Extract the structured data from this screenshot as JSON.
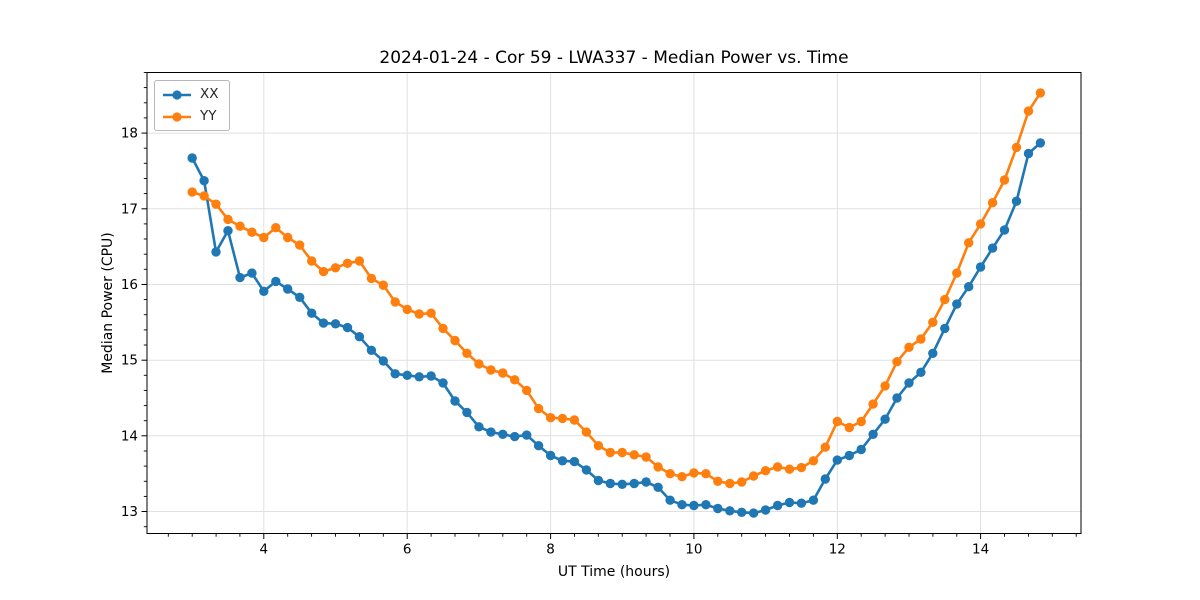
{
  "figure": {
    "title": "2024-01-24 - Cor 59 - LWA337 - Median Power vs. Time",
    "xlabel": "UT Time (hours)",
    "ylabel": "Median Power (CPU)"
  },
  "legend": {
    "items": [
      {
        "label": "XX",
        "color": "#1f77b4"
      },
      {
        "label": "YY",
        "color": "#ff7f0e"
      }
    ]
  },
  "chart_data": {
    "type": "line",
    "title": "2024-01-24 - Cor 59 - LWA337 - Median Power vs. Time",
    "xlabel": "UT Time (hours)",
    "ylabel": "Median Power (CPU)",
    "xlim": [
      2.37,
      15.4
    ],
    "ylim": [
      12.71,
      18.8
    ],
    "x_ticks": [
      4,
      6,
      8,
      10,
      12,
      14
    ],
    "y_ticks": [
      13,
      14,
      15,
      16,
      17,
      18
    ],
    "x_minor_step": 0.3333333,
    "y_minor_step": 0.2,
    "grid": true,
    "legend_position": "upper left",
    "marker": "circle",
    "x": [
      3.0,
      3.167,
      3.333,
      3.5,
      3.667,
      3.833,
      4.0,
      4.167,
      4.333,
      4.5,
      4.667,
      4.833,
      5.0,
      5.167,
      5.333,
      5.5,
      5.667,
      5.833,
      6.0,
      6.167,
      6.333,
      6.5,
      6.667,
      6.833,
      7.0,
      7.167,
      7.333,
      7.5,
      7.667,
      7.833,
      8.0,
      8.167,
      8.333,
      8.5,
      8.667,
      8.833,
      9.0,
      9.167,
      9.333,
      9.5,
      9.667,
      9.833,
      10.0,
      10.167,
      10.333,
      10.5,
      10.667,
      10.833,
      11.0,
      11.167,
      11.333,
      11.5,
      11.667,
      11.833,
      12.0,
      12.167,
      12.333,
      12.5,
      12.667,
      12.833,
      13.0,
      13.167,
      13.333,
      13.5,
      13.667,
      13.833,
      14.0,
      14.167,
      14.333,
      14.5,
      14.667,
      14.833
    ],
    "series": [
      {
        "name": "XX",
        "color": "#1f77b4",
        "values": [
          17.67,
          17.37,
          16.43,
          16.71,
          16.09,
          16.15,
          15.91,
          16.04,
          15.94,
          15.83,
          15.62,
          15.49,
          15.48,
          15.43,
          15.31,
          15.13,
          14.99,
          14.82,
          14.8,
          14.78,
          14.79,
          14.7,
          14.46,
          14.31,
          14.12,
          14.05,
          14.02,
          13.99,
          14.01,
          13.87,
          13.74,
          13.67,
          13.66,
          13.55,
          13.41,
          13.37,
          13.36,
          13.37,
          13.39,
          13.32,
          13.15,
          13.09,
          13.08,
          13.09,
          13.04,
          13.01,
          12.99,
          12.98,
          13.02,
          13.08,
          13.12,
          13.11,
          13.15,
          13.43,
          13.68,
          13.74,
          13.82,
          14.02,
          14.22,
          14.5,
          14.7,
          14.84,
          15.09,
          15.42,
          15.74,
          15.97,
          16.23,
          16.48,
          16.72,
          17.1,
          17.73,
          17.87
        ]
      },
      {
        "name": "YY",
        "color": "#ff7f0e",
        "values": [
          17.22,
          17.17,
          17.06,
          16.86,
          16.77,
          16.69,
          16.62,
          16.75,
          16.62,
          16.52,
          16.31,
          16.17,
          16.22,
          16.28,
          16.31,
          16.08,
          15.99,
          15.77,
          15.67,
          15.61,
          15.62,
          15.42,
          15.26,
          15.09,
          14.95,
          14.87,
          14.83,
          14.74,
          14.6,
          14.36,
          14.24,
          14.23,
          14.21,
          14.05,
          13.87,
          13.78,
          13.78,
          13.75,
          13.72,
          13.59,
          13.5,
          13.46,
          13.51,
          13.5,
          13.4,
          13.37,
          13.39,
          13.47,
          13.54,
          13.59,
          13.56,
          13.58,
          13.67,
          13.85,
          14.19,
          14.11,
          14.19,
          14.42,
          14.66,
          14.98,
          15.17,
          15.28,
          15.5,
          15.8,
          16.15,
          16.55,
          16.8,
          17.08,
          17.38,
          17.81,
          18.29,
          18.53
        ]
      }
    ],
    "style": {
      "grid_color": "#e0e0e0",
      "spine_color": "#000000",
      "tick_label_color": "#000000",
      "background": "#ffffff"
    }
  }
}
